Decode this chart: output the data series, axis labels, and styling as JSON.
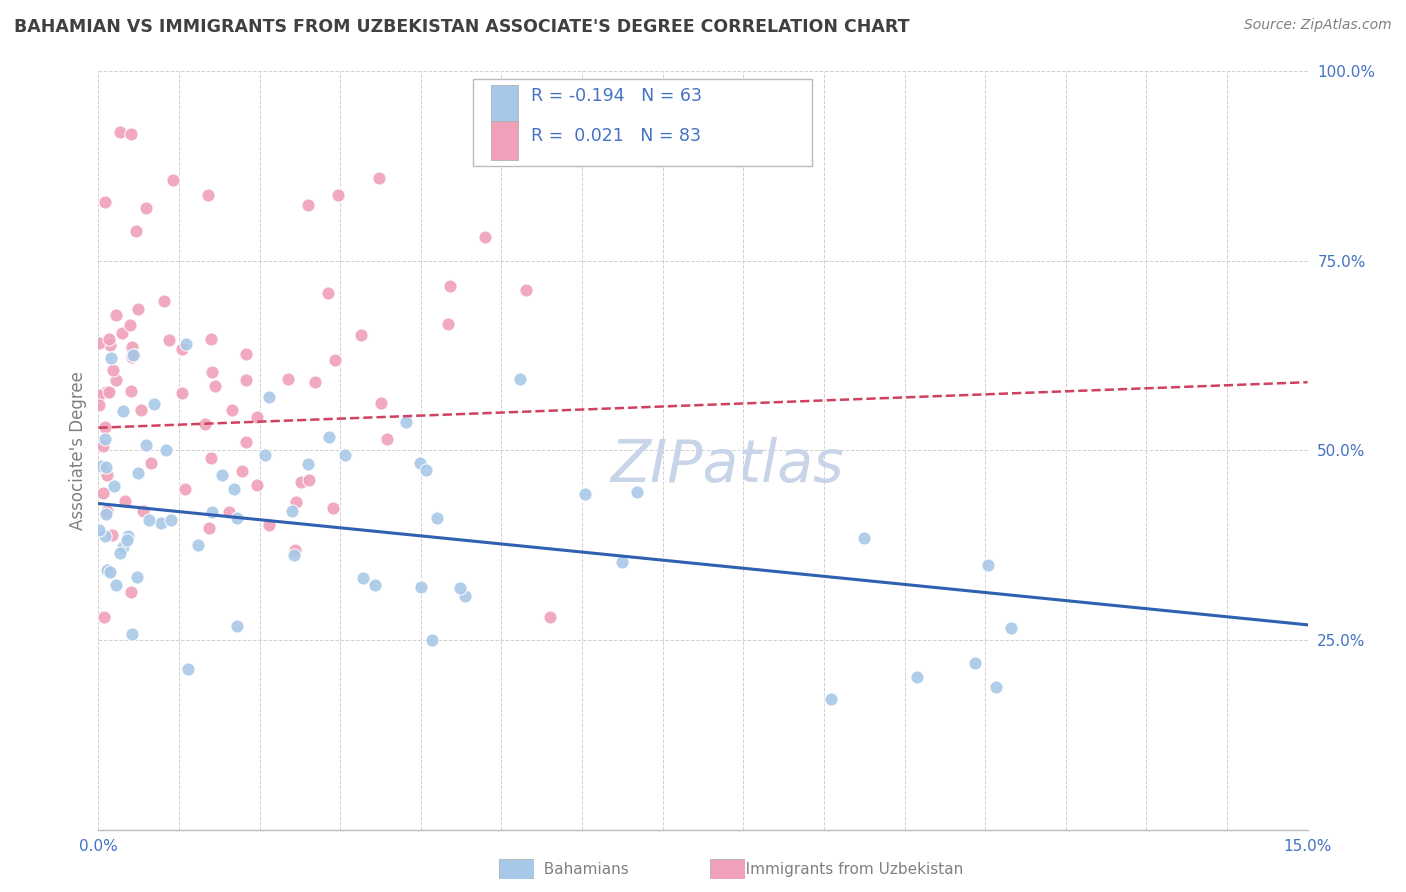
{
  "title": "BAHAMIAN VS IMMIGRANTS FROM UZBEKISTAN ASSOCIATE'S DEGREE CORRELATION CHART",
  "source": "Source: ZipAtlas.com",
  "ylabel": "Associate's Degree",
  "legend_label1": "Bahamians",
  "legend_label2": "Immigrants from Uzbekistan",
  "r1": "-0.194",
  "n1": "63",
  "r2": "0.021",
  "n2": "83",
  "color_blue": "#A8C8E8",
  "color_pink": "#F0A0B8",
  "line_blue": "#3060B0",
  "line_pink": "#D04060",
  "watermark_color": "#C8D4E8",
  "grid_color": "#CCCCCC",
  "axis_label_color": "#4472C4",
  "title_color": "#404040",
  "source_color": "#808080",
  "ylabel_color": "#808080",
  "bottom_label_color": "#808080"
}
